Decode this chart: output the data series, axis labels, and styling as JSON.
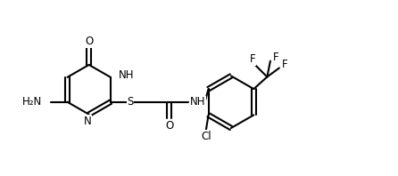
{
  "bg_color": "#ffffff",
  "line_color": "#000000",
  "line_width": 1.5,
  "font_size": 8.5,
  "figsize": [
    4.46,
    1.98
  ],
  "dpi": 100,
  "xlim": [
    0,
    11
  ],
  "ylim": [
    0,
    5.5
  ]
}
